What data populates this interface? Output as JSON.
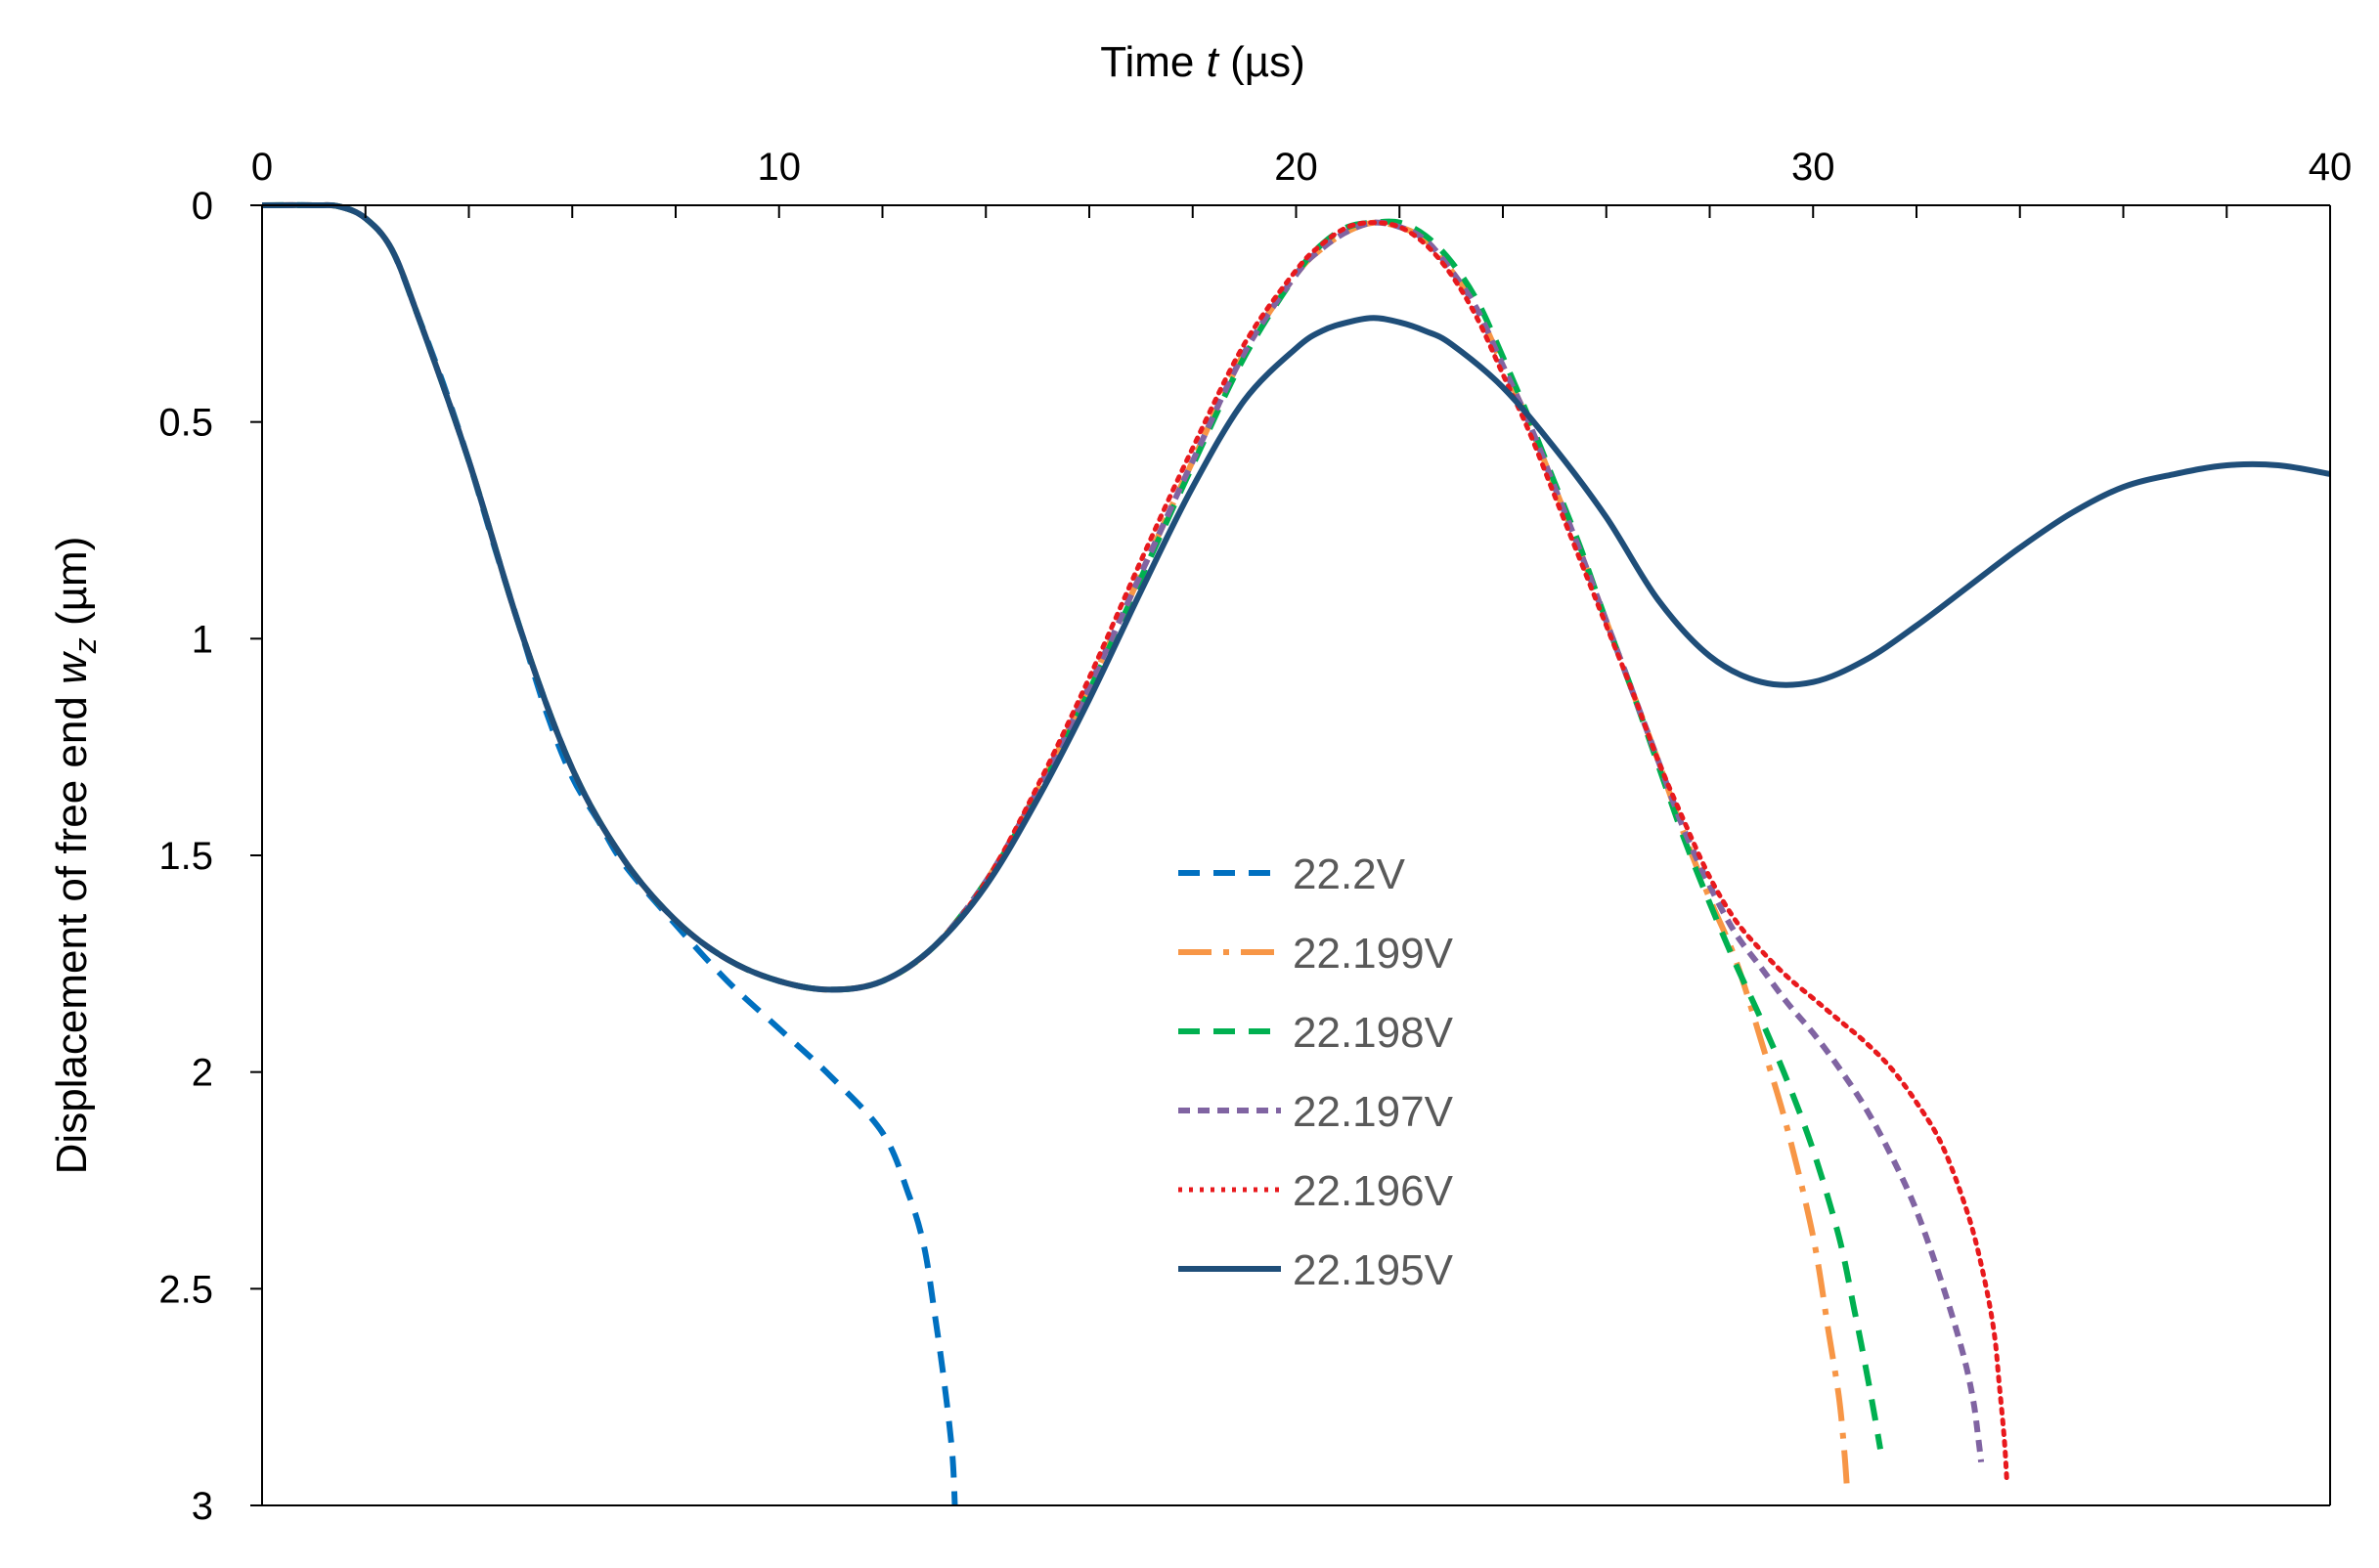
{
  "chart_data": {
    "type": "line",
    "title": "",
    "xlabel": "Time t (µs)",
    "xlabel_parts": {
      "prefix": "Time ",
      "var": "t",
      "suffix": " (µs)"
    },
    "ylabel": "Displacement of free end w_z (µm)",
    "ylabel_parts": {
      "prefix": "Displacement of free end ",
      "var": "w",
      "sub": "z",
      "suffix": " (µm)"
    },
    "xlim": [
      0,
      40
    ],
    "ylim": [
      0,
      3
    ],
    "y_inverted": true,
    "x_axis_position": "top",
    "x_ticks": [
      "0",
      "10",
      "20",
      "30",
      "40"
    ],
    "y_ticks": [
      "0",
      "0.5",
      "1",
      "1.5",
      "2",
      "2.5",
      "3"
    ],
    "legend_position": "center",
    "series": [
      {
        "name": "22.2V",
        "color": "#0070C0",
        "dash": "dash",
        "x": [
          0,
          1,
          1.5,
          2,
          2.5,
          3,
          3.5,
          4,
          4.5,
          5,
          5.5,
          6,
          6.5,
          7,
          8,
          9,
          10,
          11,
          12,
          12.5,
          12.8,
          13.0,
          13.2,
          13.35,
          13.4
        ],
        "y": [
          0,
          0,
          0.003,
          0.03,
          0.1,
          0.25,
          0.41,
          0.59,
          0.79,
          0.98,
          1.17,
          1.32,
          1.42,
          1.52,
          1.66,
          1.79,
          1.9,
          2.01,
          2.14,
          2.28,
          2.4,
          2.55,
          2.72,
          2.88,
          3.0
        ]
      },
      {
        "name": "22.199V",
        "color": "#F79646",
        "dash": "dashdot",
        "x": [
          0,
          1,
          1.5,
          2,
          2.5,
          3,
          4,
          5,
          6,
          7,
          8,
          9,
          10,
          11,
          12,
          13,
          14,
          15,
          16,
          17,
          18,
          19,
          20,
          20.5,
          21,
          21.5,
          22,
          22.5,
          23,
          23.5,
          24,
          24.5,
          25,
          25.5,
          26,
          26.5,
          27,
          27.5,
          28,
          28.5,
          29,
          29.5,
          30,
          30.3,
          30.5,
          30.6,
          30.65
        ],
        "y": [
          0,
          0,
          0.003,
          0.03,
          0.1,
          0.25,
          0.59,
          0.98,
          1.3,
          1.51,
          1.65,
          1.74,
          1.79,
          1.81,
          1.79,
          1.71,
          1.56,
          1.35,
          1.11,
          0.85,
          0.59,
          0.34,
          0.16,
          0.1,
          0.06,
          0.04,
          0.05,
          0.08,
          0.15,
          0.24,
          0.37,
          0.5,
          0.65,
          0.8,
          0.96,
          1.12,
          1.28,
          1.45,
          1.6,
          1.74,
          1.93,
          2.13,
          2.38,
          2.6,
          2.75,
          2.87,
          2.95
        ]
      },
      {
        "name": "22.198V",
        "color": "#00B050",
        "dash": "dash",
        "x": [
          0,
          1,
          1.5,
          2,
          2.5,
          3,
          4,
          5,
          6,
          7,
          8,
          9,
          10,
          11,
          12,
          13,
          14,
          15,
          16,
          17,
          18,
          19,
          20,
          20.5,
          21,
          21.5,
          22,
          22.5,
          23,
          23.5,
          24,
          24.5,
          25,
          25.5,
          26,
          26.5,
          27,
          27.5,
          28,
          28.5,
          29,
          29.5,
          30,
          30.5,
          30.8,
          31.0,
          31.2,
          31.3
        ],
        "y": [
          0,
          0,
          0.003,
          0.03,
          0.1,
          0.25,
          0.59,
          0.98,
          1.3,
          1.51,
          1.65,
          1.74,
          1.79,
          1.81,
          1.79,
          1.71,
          1.56,
          1.36,
          1.12,
          0.86,
          0.6,
          0.35,
          0.16,
          0.09,
          0.05,
          0.04,
          0.04,
          0.07,
          0.13,
          0.22,
          0.35,
          0.49,
          0.64,
          0.79,
          0.96,
          1.12,
          1.29,
          1.46,
          1.61,
          1.75,
          1.88,
          2.02,
          2.18,
          2.38,
          2.55,
          2.67,
          2.8,
          2.87
        ]
      },
      {
        "name": "22.197V",
        "color": "#8064A2",
        "dash": "shortdash",
        "x": [
          0,
          1,
          1.5,
          2,
          2.5,
          3,
          4,
          5,
          6,
          7,
          8,
          9,
          10,
          11,
          12,
          13,
          14,
          15,
          16,
          17,
          18,
          19,
          20,
          20.5,
          21,
          21.5,
          22,
          22.5,
          23,
          23.5,
          24,
          24.5,
          25,
          25.5,
          26,
          26.5,
          27,
          27.5,
          28,
          28.5,
          29,
          29.5,
          30,
          30.5,
          31,
          31.5,
          32,
          32.5,
          32.9,
          33.1,
          33.2,
          33.25
        ],
        "y": [
          0,
          0,
          0.003,
          0.03,
          0.1,
          0.25,
          0.59,
          0.98,
          1.3,
          1.51,
          1.65,
          1.74,
          1.79,
          1.81,
          1.79,
          1.71,
          1.56,
          1.35,
          1.11,
          0.85,
          0.59,
          0.34,
          0.16,
          0.1,
          0.06,
          0.04,
          0.05,
          0.08,
          0.15,
          0.24,
          0.37,
          0.5,
          0.65,
          0.8,
          0.96,
          1.12,
          1.28,
          1.44,
          1.57,
          1.68,
          1.76,
          1.84,
          1.91,
          1.99,
          2.08,
          2.19,
          2.32,
          2.49,
          2.65,
          2.76,
          2.85,
          2.9
        ]
      },
      {
        "name": "22.196V",
        "color": "#E8191D",
        "dash": "dot",
        "x": [
          0,
          1,
          1.5,
          2,
          2.5,
          3,
          4,
          5,
          6,
          7,
          8,
          9,
          10,
          11,
          12,
          13,
          14,
          15,
          16,
          17,
          18,
          19,
          20,
          20.5,
          21,
          21.5,
          22,
          22.5,
          23,
          23.5,
          24,
          24.5,
          25,
          25.5,
          26,
          26.5,
          27,
          27.5,
          28,
          28.5,
          29,
          29.5,
          30,
          30.5,
          31,
          31.5,
          32,
          32.5,
          33,
          33.3,
          33.5,
          33.6,
          33.7,
          33.75
        ],
        "y": [
          0,
          0,
          0.003,
          0.03,
          0.1,
          0.25,
          0.59,
          0.98,
          1.3,
          1.51,
          1.65,
          1.74,
          1.79,
          1.81,
          1.79,
          1.71,
          1.56,
          1.34,
          1.09,
          0.82,
          0.56,
          0.32,
          0.15,
          0.09,
          0.05,
          0.04,
          0.05,
          0.09,
          0.16,
          0.26,
          0.39,
          0.52,
          0.67,
          0.82,
          0.97,
          1.12,
          1.28,
          1.42,
          1.55,
          1.65,
          1.72,
          1.78,
          1.83,
          1.88,
          1.93,
          1.99,
          2.07,
          2.17,
          2.33,
          2.47,
          2.6,
          2.72,
          2.85,
          2.95
        ]
      },
      {
        "name": "22.195V",
        "color": "#1F4E79",
        "dash": "solid",
        "x": [
          0,
          1,
          1.5,
          2,
          2.5,
          3,
          4,
          5,
          6,
          7,
          8,
          9,
          10,
          11,
          12,
          13,
          14,
          15,
          16,
          17,
          18,
          19,
          20,
          20.5,
          21,
          21.5,
          22,
          22.5,
          23,
          24,
          25,
          26,
          27,
          28,
          29,
          30,
          31,
          32,
          33,
          34,
          35,
          36,
          37,
          38,
          39,
          40
        ],
        "y": [
          0,
          0,
          0.003,
          0.03,
          0.1,
          0.25,
          0.59,
          0.98,
          1.3,
          1.51,
          1.65,
          1.74,
          1.79,
          1.81,
          1.79,
          1.71,
          1.57,
          1.37,
          1.14,
          0.89,
          0.65,
          0.45,
          0.33,
          0.29,
          0.27,
          0.26,
          0.27,
          0.29,
          0.32,
          0.42,
          0.56,
          0.72,
          0.91,
          1.04,
          1.1,
          1.1,
          1.05,
          0.97,
          0.88,
          0.79,
          0.71,
          0.65,
          0.62,
          0.6,
          0.6,
          0.62
        ]
      }
    ]
  }
}
